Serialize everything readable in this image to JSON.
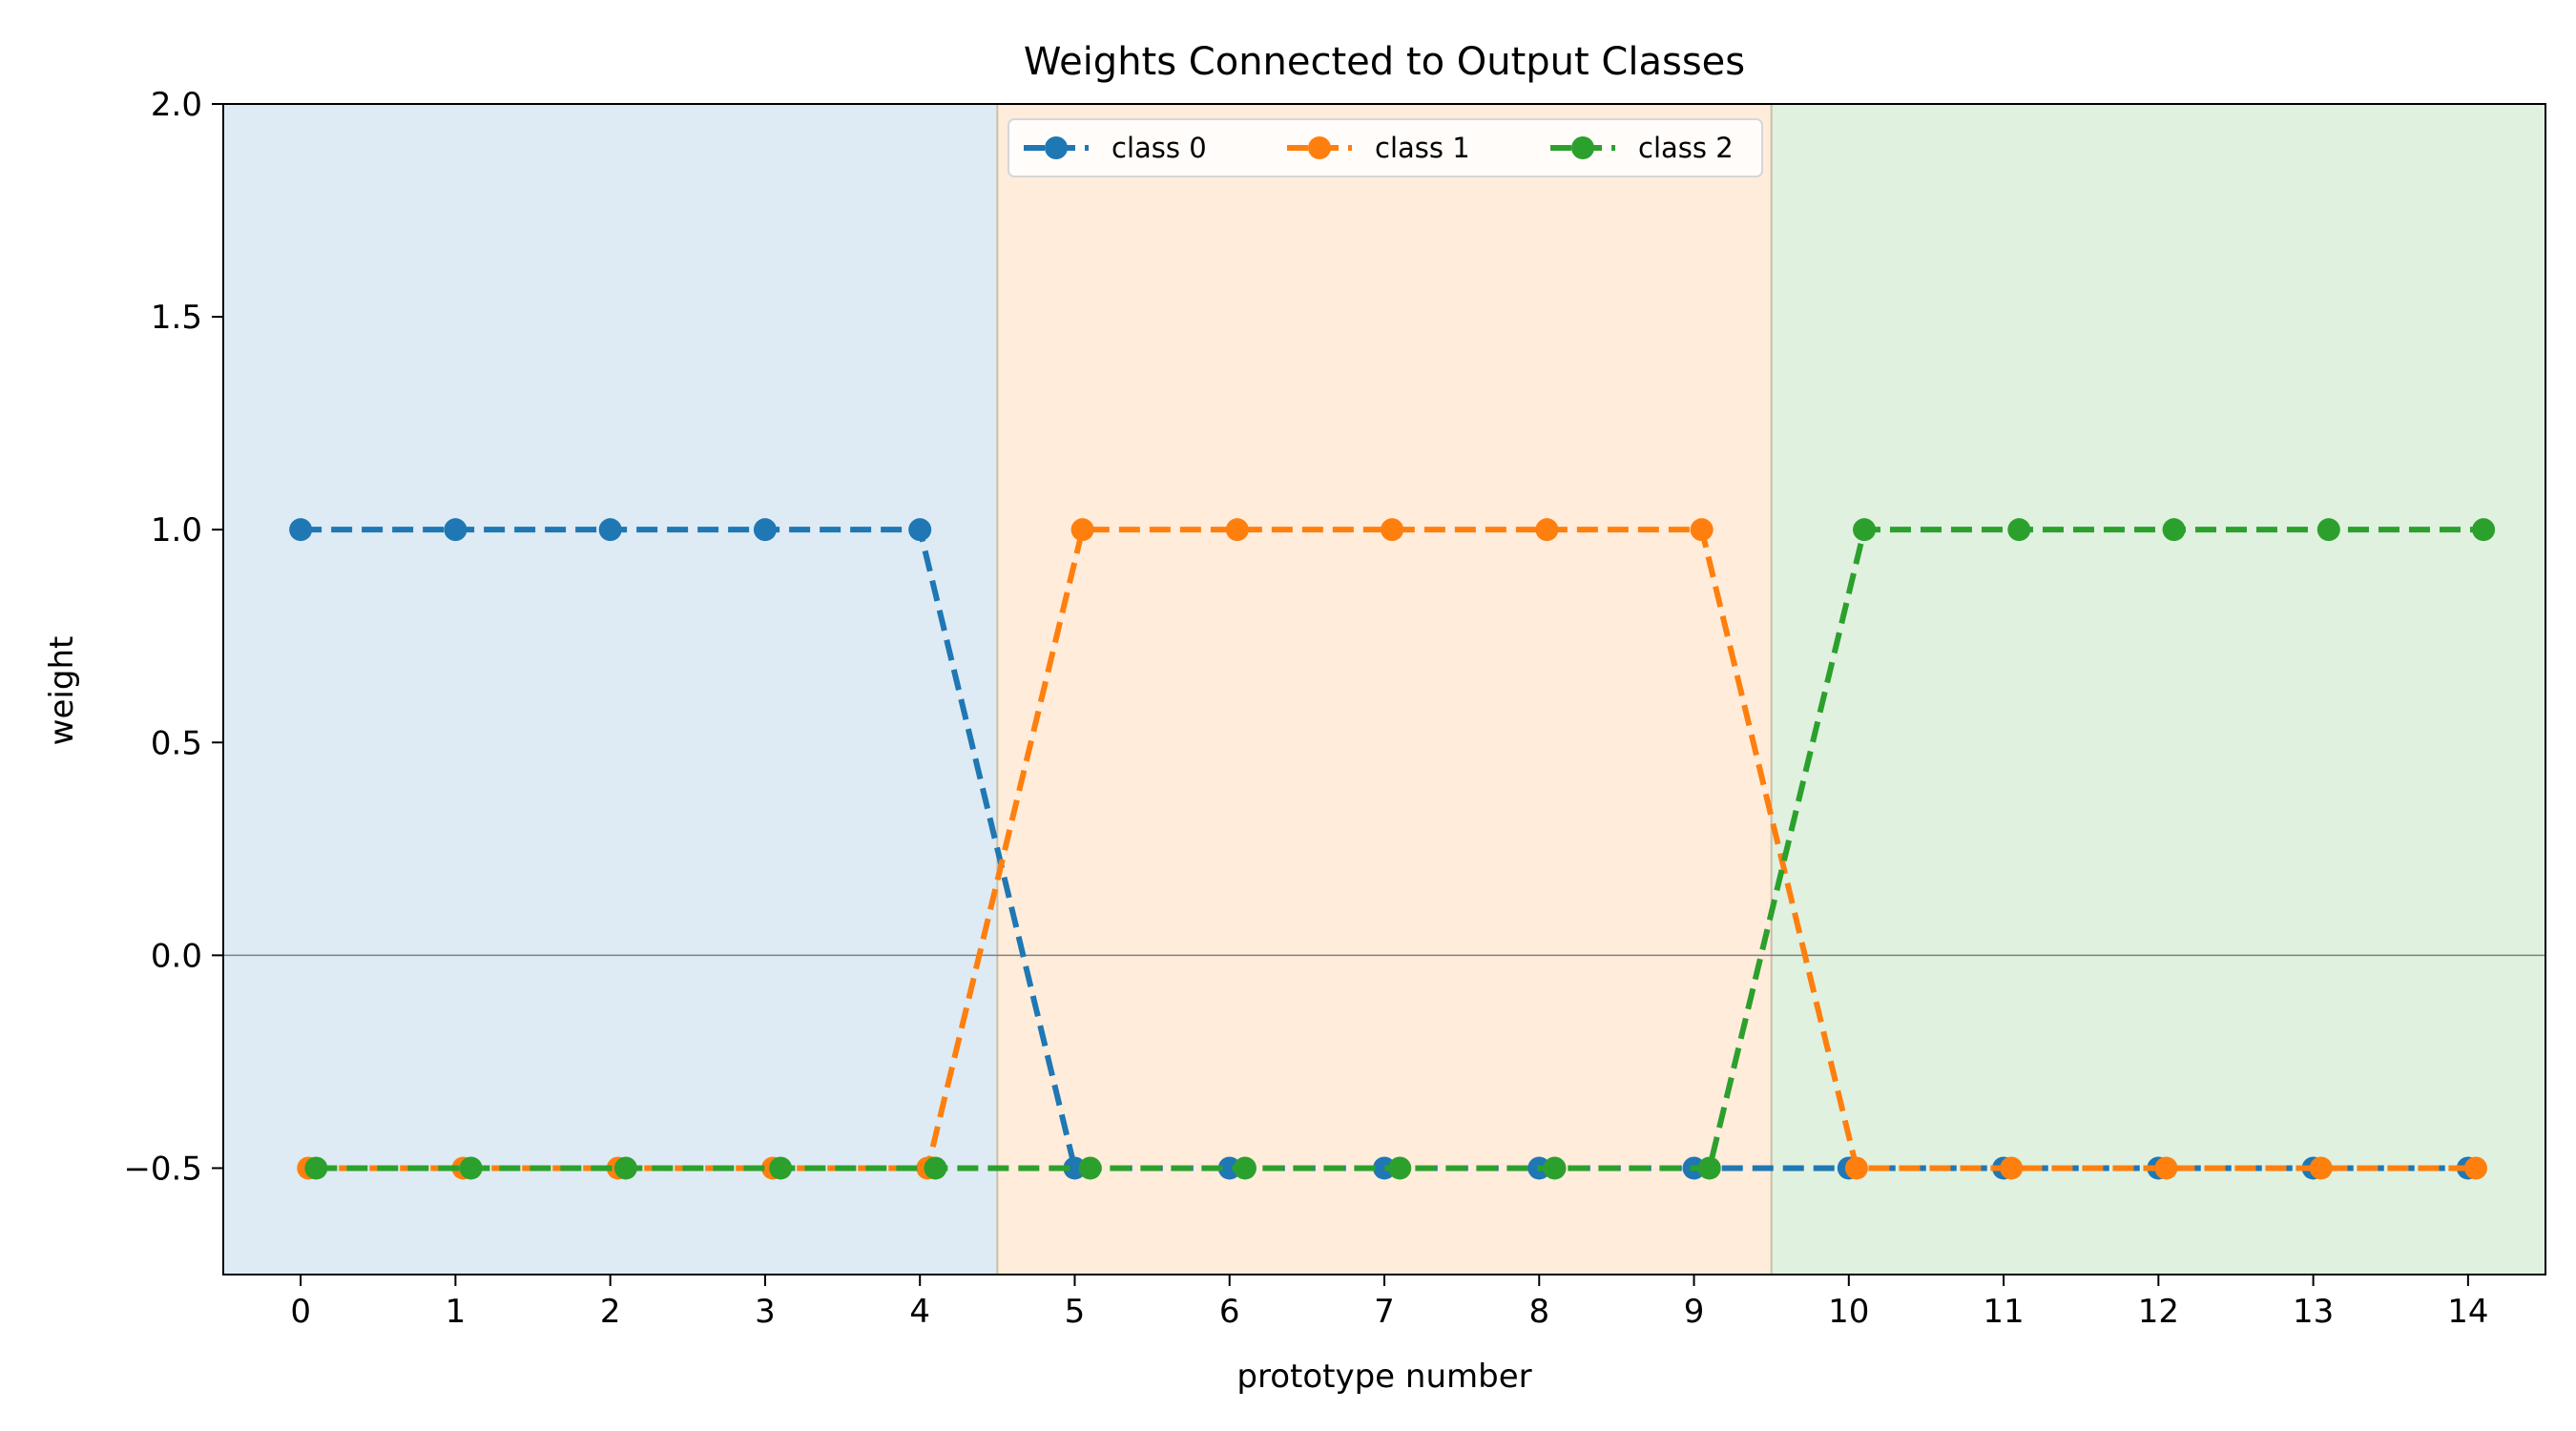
{
  "chart_data": {
    "type": "line",
    "title": "Weights Connected to Output Classes",
    "xlabel": "prototype number",
    "ylabel": "weight",
    "xlim": [
      -0.5,
      14.5
    ],
    "ylim": [
      -0.75,
      2.0
    ],
    "x": [
      0,
      1,
      2,
      3,
      4,
      5,
      6,
      7,
      8,
      9,
      10,
      11,
      12,
      13,
      14
    ],
    "xticks": [
      0,
      1,
      2,
      3,
      4,
      5,
      6,
      7,
      8,
      9,
      10,
      11,
      12,
      13,
      14
    ],
    "yticks": [
      -0.5,
      0.0,
      0.5,
      1.0,
      1.5,
      2.0
    ],
    "ytick_labels": [
      "−0.5",
      "0.0",
      "0.5",
      "1.0",
      "1.5",
      "2.0"
    ],
    "zero_line": true,
    "legend_placement": "upper-center",
    "series": [
      {
        "name": "class 0",
        "color": "#1f77b4",
        "x_offset": 0.0,
        "values": [
          1,
          1,
          1,
          1,
          1,
          -0.5,
          -0.5,
          -0.5,
          -0.5,
          -0.5,
          -0.5,
          -0.5,
          -0.5,
          -0.5,
          -0.5
        ]
      },
      {
        "name": "class 1",
        "color": "#ff7f0e",
        "x_offset": 0.05,
        "values": [
          -0.5,
          -0.5,
          -0.5,
          -0.5,
          -0.5,
          1,
          1,
          1,
          1,
          1,
          -0.5,
          -0.5,
          -0.5,
          -0.5,
          -0.5
        ]
      },
      {
        "name": "class 2",
        "color": "#2ca02c",
        "x_offset": 0.1,
        "values": [
          -0.5,
          -0.5,
          -0.5,
          -0.5,
          -0.5,
          -0.5,
          -0.5,
          -0.5,
          -0.5,
          -0.5,
          1,
          1,
          1,
          1,
          1
        ]
      }
    ],
    "class_regions": [
      {
        "x_start": -0.5,
        "x_end": 4.5,
        "color": "#1f77b4"
      },
      {
        "x_start": 4.5,
        "x_end": 9.5,
        "color": "#ff7f0e"
      },
      {
        "x_start": 9.5,
        "x_end": 14.5,
        "color": "#2ca02c"
      }
    ]
  }
}
